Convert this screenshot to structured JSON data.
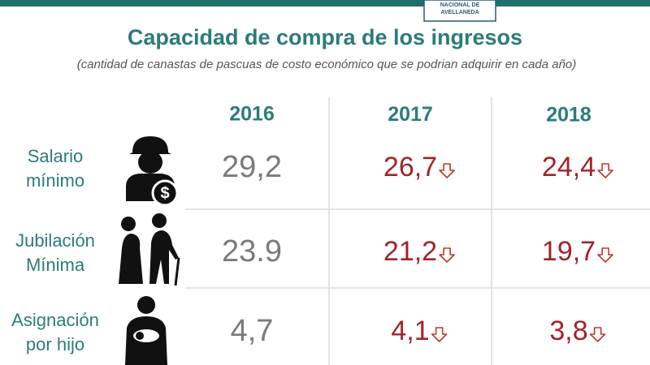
{
  "header": {
    "logo": [
      "NACIONAL DE",
      "AVELLANEDA"
    ],
    "title": "Capacidad de compra de los ingresos",
    "subtitle": "(cantidad de canastas de pascuas de costo económico que se podrian adquirir en cada año)"
  },
  "table": {
    "columns": [
      "2016",
      "2017",
      "2018"
    ],
    "rows": [
      {
        "label": [
          "Salario",
          "mínimo"
        ],
        "values": [
          "29,2",
          "26,7",
          "24,4"
        ]
      },
      {
        "label": [
          "Jubilación",
          "Mínima"
        ],
        "values": [
          "23.9",
          "21,2",
          "19,7"
        ]
      },
      {
        "label": [
          "Asignación",
          "por hijo"
        ],
        "values": [
          "4,7",
          "4,1",
          "3,8"
        ]
      }
    ]
  }
}
